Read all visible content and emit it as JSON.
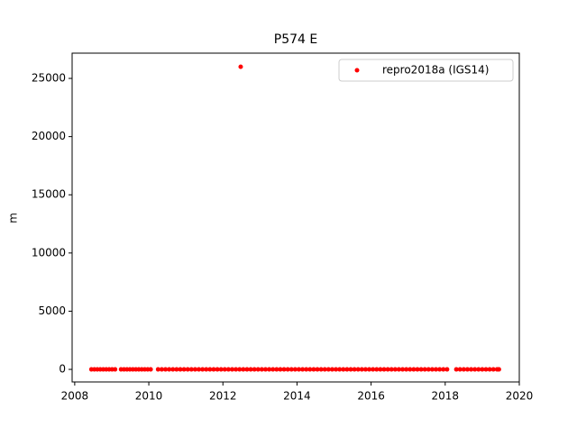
{
  "chart_data": {
    "type": "scatter",
    "title": "P574 E",
    "y_label": "m",
    "xlim": [
      2007.93,
      2020
    ],
    "ylim": [
      -1080,
      27170
    ],
    "xticks": [
      2008,
      2010,
      2012,
      2014,
      2016,
      2018,
      2020
    ],
    "yticks": [
      0,
      5000,
      10000,
      15000,
      20000,
      25000
    ],
    "grid": false,
    "legend": "upper right",
    "series": [
      {
        "name": "repro2018a (IGS14)",
        "color": "#ff0000",
        "x": [
          2008.45,
          2008.53,
          2008.61,
          2008.69,
          2008.77,
          2008.85,
          2008.93,
          2009.01,
          2009.09,
          2009.25,
          2009.33,
          2009.41,
          2009.49,
          2009.57,
          2009.65,
          2009.73,
          2009.81,
          2009.89,
          2009.97,
          2010.05,
          2010.25,
          2010.35,
          2010.45,
          2010.55,
          2010.65,
          2010.75,
          2010.85,
          2010.95,
          2011.05,
          2011.15,
          2011.25,
          2011.35,
          2011.45,
          2011.55,
          2011.65,
          2011.75,
          2011.85,
          2011.95,
          2012.05,
          2012.15,
          2012.25,
          2012.35,
          2012.45,
          2012.55,
          2012.65,
          2012.75,
          2012.85,
          2012.95,
          2013.05,
          2013.15,
          2013.25,
          2013.35,
          2013.45,
          2013.55,
          2013.65,
          2013.75,
          2013.85,
          2013.95,
          2014.05,
          2014.15,
          2014.25,
          2014.35,
          2014.45,
          2014.55,
          2014.65,
          2014.75,
          2014.85,
          2014.95,
          2015.05,
          2015.15,
          2015.25,
          2015.35,
          2015.45,
          2015.55,
          2015.65,
          2015.75,
          2015.85,
          2015.95,
          2016.05,
          2016.15,
          2016.25,
          2016.35,
          2016.45,
          2016.55,
          2016.65,
          2016.75,
          2016.85,
          2016.95,
          2017.05,
          2017.15,
          2017.25,
          2017.35,
          2017.45,
          2017.55,
          2017.65,
          2017.75,
          2017.85,
          2017.95,
          2018.05,
          2018.3,
          2018.4,
          2018.5,
          2018.6,
          2018.7,
          2018.8,
          2018.9,
          2019.0,
          2019.1,
          2019.2,
          2019.3,
          2019.4,
          2019.45,
          2012.48
        ],
        "values": [
          0,
          0,
          0,
          0,
          0,
          0,
          0,
          0,
          0,
          0,
          0,
          0,
          0,
          0,
          0,
          0,
          0,
          0,
          0,
          0,
          0,
          0,
          0,
          0,
          0,
          0,
          0,
          0,
          0,
          0,
          0,
          0,
          0,
          0,
          0,
          0,
          0,
          0,
          0,
          0,
          0,
          0,
          0,
          0,
          0,
          0,
          0,
          0,
          0,
          0,
          0,
          0,
          0,
          0,
          0,
          0,
          0,
          0,
          0,
          0,
          0,
          0,
          0,
          0,
          0,
          0,
          0,
          0,
          0,
          0,
          0,
          0,
          0,
          0,
          0,
          0,
          0,
          0,
          0,
          0,
          0,
          0,
          0,
          0,
          0,
          0,
          0,
          0,
          0,
          0,
          0,
          0,
          0,
          0,
          0,
          0,
          0,
          0,
          0,
          0,
          0,
          0,
          0,
          0,
          0,
          0,
          0,
          0,
          0,
          0,
          0,
          0,
          26000
        ]
      }
    ]
  }
}
